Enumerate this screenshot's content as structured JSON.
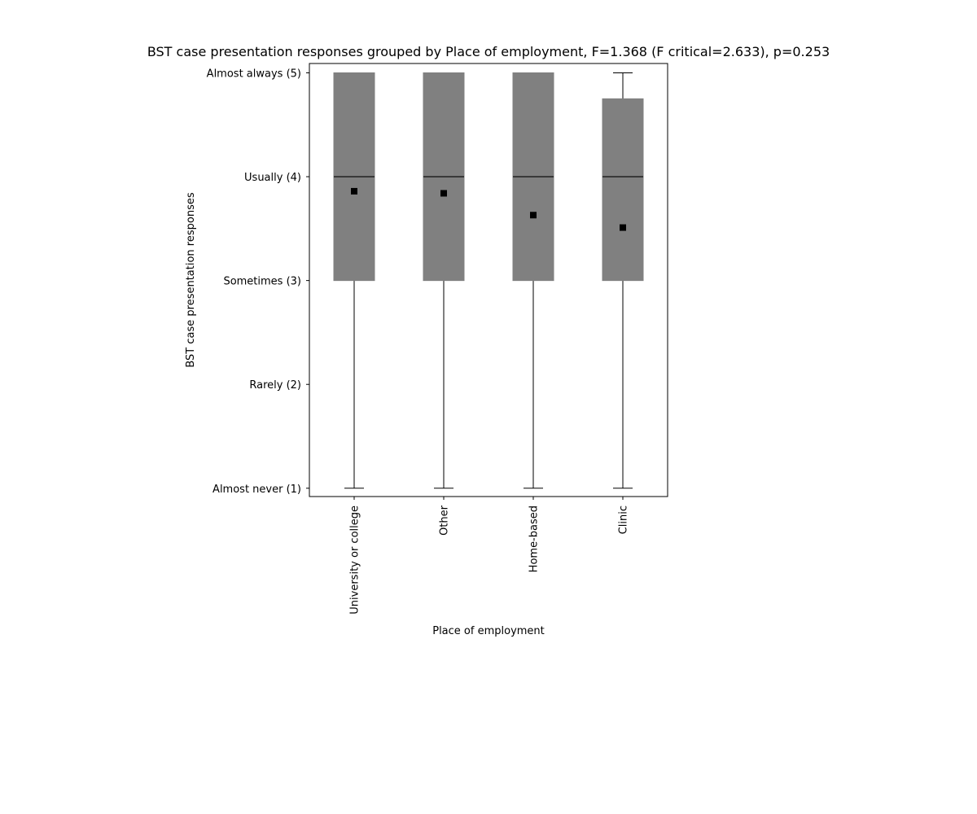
{
  "chart_data": {
    "type": "box",
    "title": "BST case presentation responses grouped by Place of employment, F=1.368 (F critical=2.633), p=0.253",
    "xlabel": "Place of employment",
    "ylabel": "BST case presentation responses",
    "ylim": [
      0.92,
      5.09
    ],
    "y_ticks": [
      {
        "value": 1,
        "label": "Almost never (1)"
      },
      {
        "value": 2,
        "label": "Rarely (2)"
      },
      {
        "value": 3,
        "label": "Sometimes (3)"
      },
      {
        "value": 4,
        "label": "Usually (4)"
      },
      {
        "value": 5,
        "label": "Almost always (5)"
      }
    ],
    "categories": [
      "University or college",
      "Other",
      "Home-based",
      "Clinic"
    ],
    "boxes": [
      {
        "category": "University or college",
        "whisker_low": 1,
        "q1": 3,
        "median": 4,
        "q3": 5,
        "whisker_high": 5,
        "mean": 3.86
      },
      {
        "category": "Other",
        "whisker_low": 1,
        "q1": 3,
        "median": 4,
        "q3": 5,
        "whisker_high": 5,
        "mean": 3.84
      },
      {
        "category": "Home-based",
        "whisker_low": 1,
        "q1": 3,
        "median": 4,
        "q3": 5,
        "whisker_high": 5,
        "mean": 3.63
      },
      {
        "category": "Clinic",
        "whisker_low": 1,
        "q1": 3,
        "median": 4,
        "q3": 4.75,
        "whisker_high": 5,
        "mean": 3.51
      }
    ],
    "grid": false,
    "colors": {
      "box_fill": "#808080",
      "line": "#000000",
      "mean_marker": "#000000",
      "background": "#ffffff"
    }
  }
}
